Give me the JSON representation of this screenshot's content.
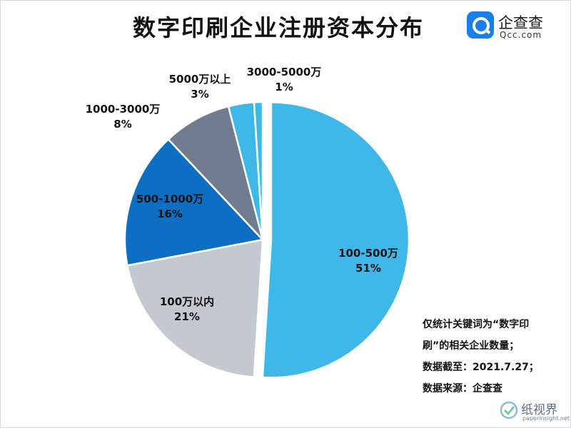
{
  "chart_data": {
    "type": "pie",
    "title": "数字印刷企业注册资本分布",
    "slices": [
      {
        "label": "100-500万",
        "percent_label": "51%",
        "value": 51,
        "color": "#3db8e8"
      },
      {
        "label": "100万以内",
        "percent_label": "21%",
        "value": 21,
        "color": "#c4c9d1"
      },
      {
        "label": "500-1000万",
        "percent_label": "16%",
        "value": 16,
        "color": "#0d6fc4"
      },
      {
        "label": "1000-3000万",
        "percent_label": "8%",
        "value": 8,
        "color": "#707c90"
      },
      {
        "label": "5000万以上",
        "percent_label": "3%",
        "value": 3,
        "color": "#3db8e8"
      },
      {
        "label": "3000-5000万",
        "percent_label": "1%",
        "value": 1,
        "color": "#3db8e8"
      }
    ]
  },
  "logo": {
    "cn": "企查查",
    "en": "Qcc.com"
  },
  "notes": [
    "仅统计关键词为“数字印",
    "刷”的相关企业数量；",
    "数据截至：2021.7.27；",
    "数据来源：企查查"
  ],
  "watermark": {
    "cn": "纸视界",
    "en": "paperinsight.net"
  }
}
